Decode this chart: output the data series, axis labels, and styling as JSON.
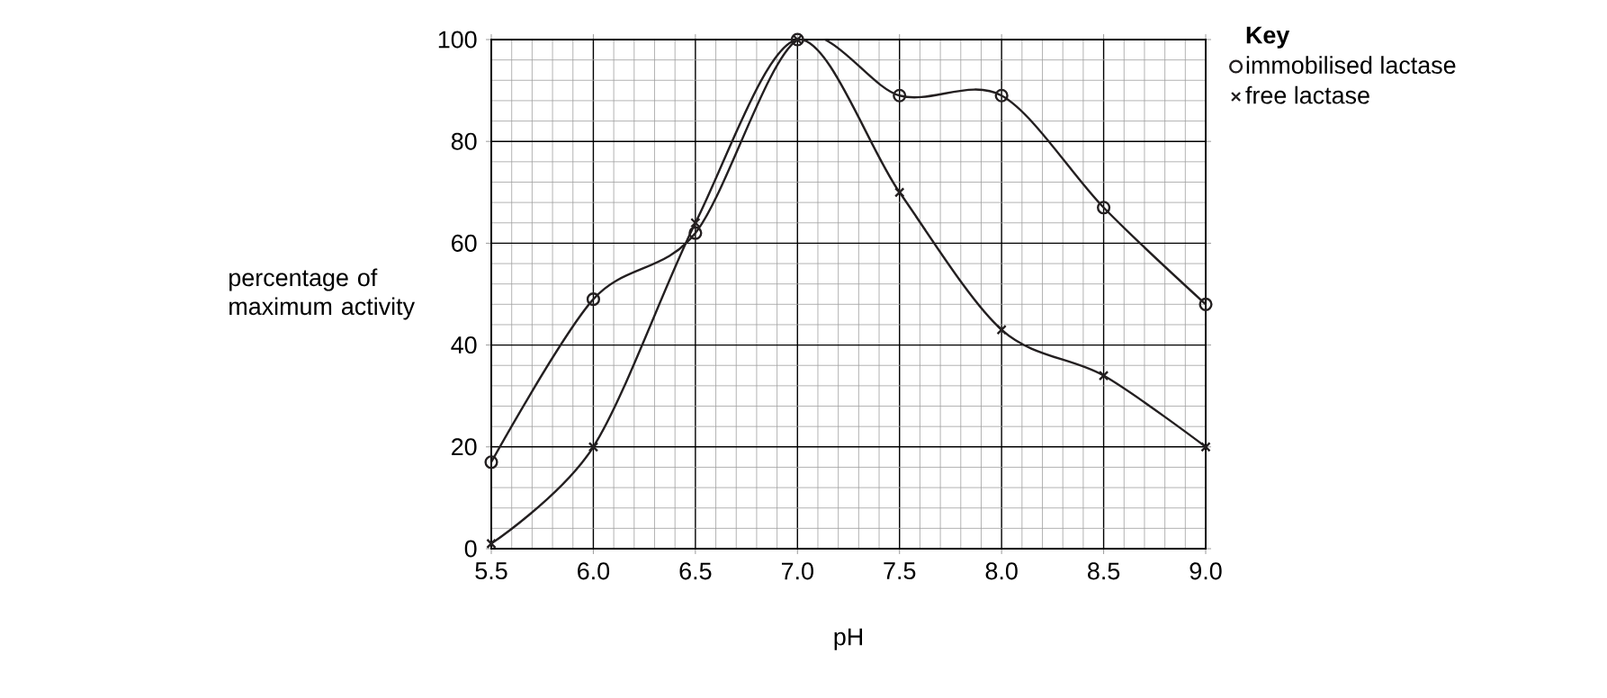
{
  "chart_data": {
    "type": "line",
    "xlabel": "pH",
    "ylabel": "percentage of maximum activity",
    "legend_title": "Key",
    "x": [
      5.5,
      6.0,
      6.5,
      7.0,
      7.5,
      8.0,
      8.5,
      9.0
    ],
    "series": [
      {
        "name": "immobilised lactase",
        "color": "#231f20",
        "marker": "circle",
        "values": [
          17,
          49,
          62,
          100,
          89,
          89,
          67,
          48
        ]
      },
      {
        "name": "free lactase",
        "color": "#231f20",
        "marker": "cross",
        "values": [
          1,
          20,
          64,
          100,
          70,
          43,
          34,
          20
        ]
      }
    ],
    "xlim": [
      5.5,
      9.0
    ],
    "ylim": [
      0,
      100
    ],
    "xticks": [
      {
        "value": 5.5,
        "label": "5.5"
      },
      {
        "value": 6.0,
        "label": "6.0"
      },
      {
        "value": 6.5,
        "label": "6.5"
      },
      {
        "value": 7.0,
        "label": "7.0"
      },
      {
        "value": 7.5,
        "label": "7.5"
      },
      {
        "value": 8.0,
        "label": "8.0"
      },
      {
        "value": 8.5,
        "label": "8.5"
      },
      {
        "value": 9.0,
        "label": "9.0"
      }
    ],
    "yticks": [
      0,
      20,
      40,
      60,
      80,
      100
    ],
    "grid": true,
    "legend": "top right",
    "line_style": "solid"
  }
}
